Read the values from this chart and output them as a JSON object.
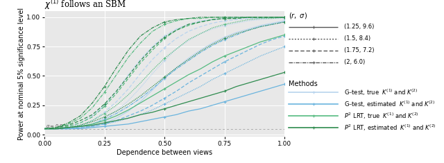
{
  "title": "$\\chi^{(1)}$ follows an SBM",
  "xlabel": "Dependence between views",
  "ylabel": "Power at nominal 5% significance level",
  "xlim": [
    0.0,
    1.0
  ],
  "ylim": [
    -0.02,
    1.05
  ],
  "alpha_line": 0.05,
  "background_color": "#e8e8e8",
  "x_values": [
    0.0,
    0.05,
    0.1,
    0.15,
    0.2,
    0.25,
    0.3,
    0.35,
    0.4,
    0.45,
    0.5,
    0.55,
    0.6,
    0.65,
    0.7,
    0.75,
    0.8,
    0.85,
    0.9,
    0.95,
    1.0
  ],
  "curves": {
    "G_true": {
      "color": "#b8d4ee",
      "linestyles": [
        "solid",
        "dotted",
        "dashed",
        "dashdot"
      ],
      "data": [
        [
          0.05,
          0.05,
          0.05,
          0.06,
          0.07,
          0.1,
          0.14,
          0.2,
          0.28,
          0.38,
          0.48,
          0.57,
          0.65,
          0.72,
          0.78,
          0.83,
          0.87,
          0.9,
          0.93,
          0.95,
          0.97
        ],
        [
          0.05,
          0.05,
          0.06,
          0.07,
          0.09,
          0.14,
          0.2,
          0.29,
          0.4,
          0.52,
          0.63,
          0.73,
          0.8,
          0.86,
          0.9,
          0.93,
          0.95,
          0.97,
          0.98,
          0.99,
          0.99
        ],
        [
          0.05,
          0.05,
          0.06,
          0.08,
          0.12,
          0.19,
          0.28,
          0.39,
          0.52,
          0.64,
          0.74,
          0.82,
          0.88,
          0.92,
          0.95,
          0.97,
          0.98,
          0.99,
          0.99,
          1.0,
          1.0
        ],
        [
          0.05,
          0.05,
          0.07,
          0.1,
          0.16,
          0.25,
          0.37,
          0.51,
          0.64,
          0.75,
          0.84,
          0.9,
          0.94,
          0.97,
          0.98,
          0.99,
          1.0,
          1.0,
          1.0,
          1.0,
          1.0
        ]
      ]
    },
    "G_estimated": {
      "color": "#6ab4de",
      "linestyles": [
        "solid",
        "dotted",
        "dashed",
        "dashdot"
      ],
      "data": [
        [
          0.05,
          0.05,
          0.05,
          0.05,
          0.06,
          0.07,
          0.08,
          0.09,
          0.11,
          0.13,
          0.15,
          0.17,
          0.2,
          0.22,
          0.25,
          0.28,
          0.31,
          0.34,
          0.37,
          0.4,
          0.43
        ],
        [
          0.05,
          0.05,
          0.05,
          0.06,
          0.07,
          0.09,
          0.11,
          0.14,
          0.17,
          0.21,
          0.26,
          0.31,
          0.36,
          0.41,
          0.47,
          0.52,
          0.57,
          0.62,
          0.67,
          0.71,
          0.75
        ],
        [
          0.05,
          0.05,
          0.05,
          0.06,
          0.07,
          0.09,
          0.12,
          0.16,
          0.2,
          0.25,
          0.31,
          0.37,
          0.44,
          0.5,
          0.56,
          0.62,
          0.67,
          0.72,
          0.77,
          0.81,
          0.84
        ],
        [
          0.05,
          0.05,
          0.06,
          0.07,
          0.09,
          0.13,
          0.18,
          0.24,
          0.31,
          0.39,
          0.48,
          0.56,
          0.63,
          0.7,
          0.76,
          0.81,
          0.85,
          0.89,
          0.92,
          0.94,
          0.96
        ]
      ]
    },
    "P2_true": {
      "color": "#55bb80",
      "linestyles": [
        "solid",
        "dotted",
        "dashed",
        "dashdot"
      ],
      "data": [
        [
          0.05,
          0.05,
          0.06,
          0.07,
          0.09,
          0.12,
          0.16,
          0.21,
          0.27,
          0.33,
          0.39,
          0.45,
          0.51,
          0.56,
          0.62,
          0.67,
          0.71,
          0.75,
          0.79,
          0.82,
          0.85
        ],
        [
          0.05,
          0.05,
          0.06,
          0.08,
          0.12,
          0.18,
          0.25,
          0.34,
          0.44,
          0.55,
          0.65,
          0.73,
          0.81,
          0.86,
          0.91,
          0.94,
          0.96,
          0.98,
          0.99,
          0.99,
          1.0
        ],
        [
          0.05,
          0.05,
          0.07,
          0.1,
          0.15,
          0.24,
          0.35,
          0.48,
          0.61,
          0.72,
          0.82,
          0.89,
          0.93,
          0.96,
          0.98,
          0.99,
          0.99,
          1.0,
          1.0,
          1.0,
          1.0
        ],
        [
          0.05,
          0.06,
          0.09,
          0.14,
          0.23,
          0.36,
          0.51,
          0.66,
          0.78,
          0.88,
          0.94,
          0.97,
          0.99,
          0.99,
          1.0,
          1.0,
          1.0,
          1.0,
          1.0,
          1.0,
          1.0
        ]
      ]
    },
    "P2_estimated": {
      "color": "#2e8b4e",
      "linestyles": [
        "solid",
        "dotted",
        "dashed",
        "dashdot"
      ],
      "data": [
        [
          0.05,
          0.05,
          0.06,
          0.07,
          0.08,
          0.1,
          0.12,
          0.14,
          0.17,
          0.19,
          0.22,
          0.25,
          0.28,
          0.31,
          0.34,
          0.37,
          0.41,
          0.44,
          0.47,
          0.5,
          0.53
        ],
        [
          0.05,
          0.05,
          0.06,
          0.08,
          0.11,
          0.15,
          0.2,
          0.26,
          0.33,
          0.41,
          0.49,
          0.57,
          0.64,
          0.71,
          0.77,
          0.82,
          0.86,
          0.89,
          0.92,
          0.94,
          0.96
        ],
        [
          0.05,
          0.06,
          0.08,
          0.12,
          0.17,
          0.26,
          0.37,
          0.5,
          0.63,
          0.74,
          0.83,
          0.89,
          0.94,
          0.96,
          0.98,
          0.99,
          0.99,
          1.0,
          1.0,
          1.0,
          1.0
        ],
        [
          0.05,
          0.06,
          0.1,
          0.16,
          0.27,
          0.41,
          0.57,
          0.72,
          0.84,
          0.91,
          0.96,
          0.98,
          0.99,
          1.0,
          1.0,
          1.0,
          1.0,
          1.0,
          1.0,
          1.0,
          1.0
        ]
      ]
    }
  },
  "r_sigma_labels": [
    "(1.25, 9.6)",
    "(1.5, 8.4)",
    "(1.75, 7.2)",
    "(2, 6.0)"
  ],
  "method_labels": [
    "G–test, true  $K^{(1)}$ and $K^{(2)}$",
    "G–test, estimated  $K^{(1)}$ and $K^{(2)}$",
    "$P^2$ LRT, true  $K^{(1)}$ and $K^{(2)}$",
    "$P^2$ LRT, estimated  $K^{(1)}$ and $K^{(2)}$"
  ],
  "method_colors": [
    "#b8d4ee",
    "#6ab4de",
    "#55bb80",
    "#2e8b4e"
  ],
  "grid_color": "white",
  "title_fontsize": 8.5,
  "axis_fontsize": 7,
  "tick_fontsize": 6.5
}
